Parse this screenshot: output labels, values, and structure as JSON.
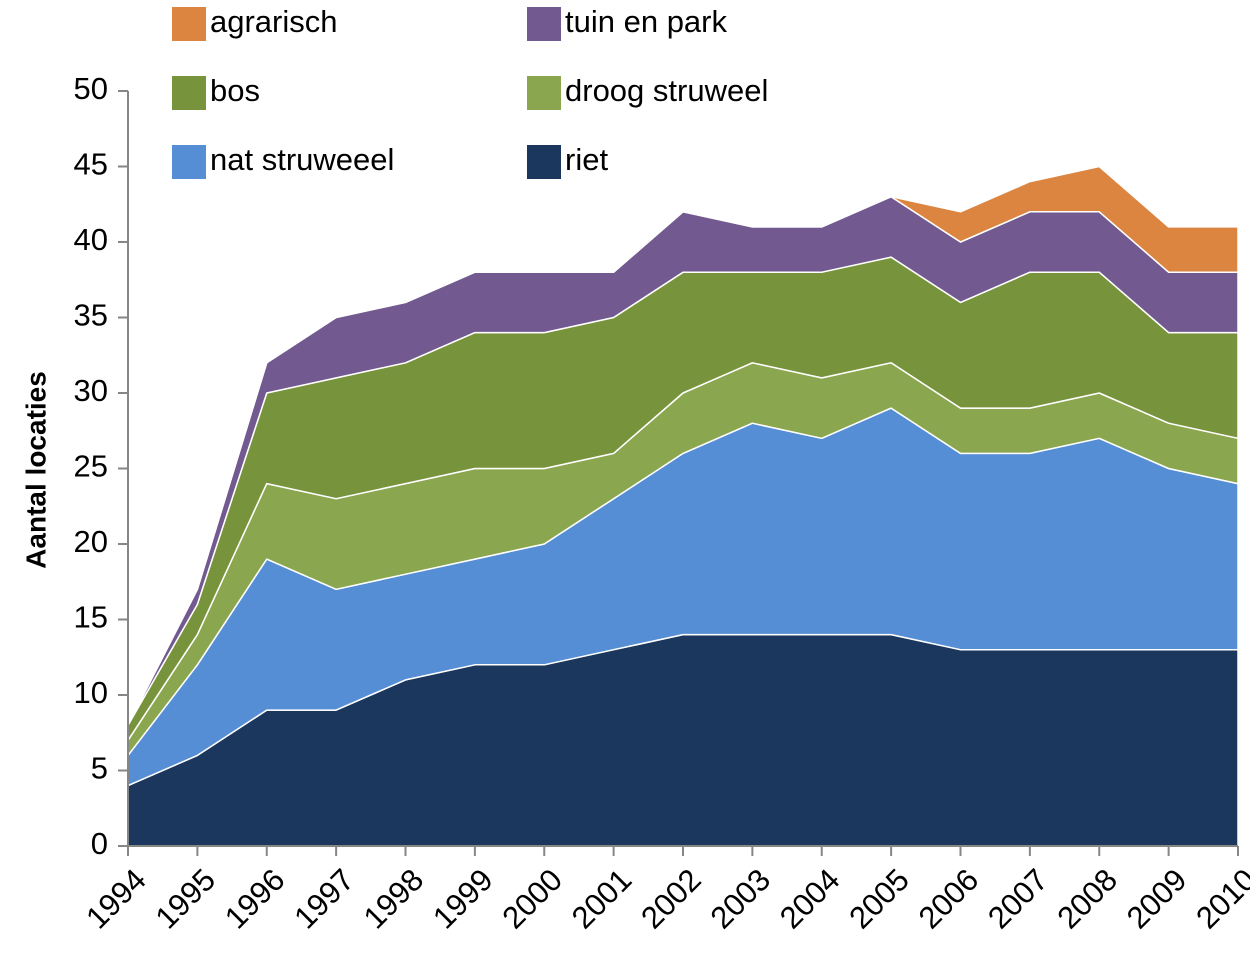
{
  "chart_data": {
    "type": "stacked-area",
    "y_label": "Aantal locaties",
    "categories": [
      "1994",
      "1995",
      "1996",
      "1997",
      "1998",
      "1999",
      "2000",
      "2001",
      "2002",
      "2003",
      "2004",
      "2005",
      "2006",
      "2007",
      "2008",
      "2009",
      "2010"
    ],
    "series": [
      {
        "name": "riet",
        "color": "#1b375d",
        "values": [
          4,
          6,
          9,
          9,
          11,
          12,
          12,
          13,
          14,
          14,
          14,
          14,
          13,
          13,
          13,
          13,
          13
        ]
      },
      {
        "name": "nat struweeel",
        "color": "#558ed5",
        "values": [
          2,
          6,
          10,
          8,
          7,
          7,
          8,
          10,
          12,
          14,
          13,
          15,
          13,
          13,
          14,
          12,
          11
        ]
      },
      {
        "name": "droog struweel",
        "color": "#8aa64e",
        "values": [
          1,
          2,
          5,
          6,
          6,
          6,
          5,
          3,
          4,
          4,
          4,
          3,
          3,
          3,
          3,
          3,
          3
        ]
      },
      {
        "name": "bos",
        "color": "#77933c",
        "values": [
          1,
          2,
          6,
          8,
          8,
          9,
          9,
          9,
          8,
          6,
          7,
          7,
          7,
          9,
          8,
          6,
          7
        ]
      },
      {
        "name": "tuin en park",
        "color": "#72598f",
        "values": [
          0,
          1,
          2,
          4,
          4,
          4,
          4,
          3,
          4,
          3,
          3,
          4,
          4,
          4,
          4,
          4,
          4
        ]
      },
      {
        "name": "agrarisch",
        "color": "#db8540",
        "values": [
          0,
          0,
          0,
          0,
          0,
          0,
          0,
          0,
          0,
          0,
          0,
          0,
          2,
          2,
          3,
          3,
          3
        ]
      }
    ],
    "ylim": [
      0,
      50
    ],
    "yticks": [
      0,
      5,
      10,
      15,
      20,
      25,
      30,
      35,
      40,
      45,
      50
    ],
    "grid": false
  }
}
